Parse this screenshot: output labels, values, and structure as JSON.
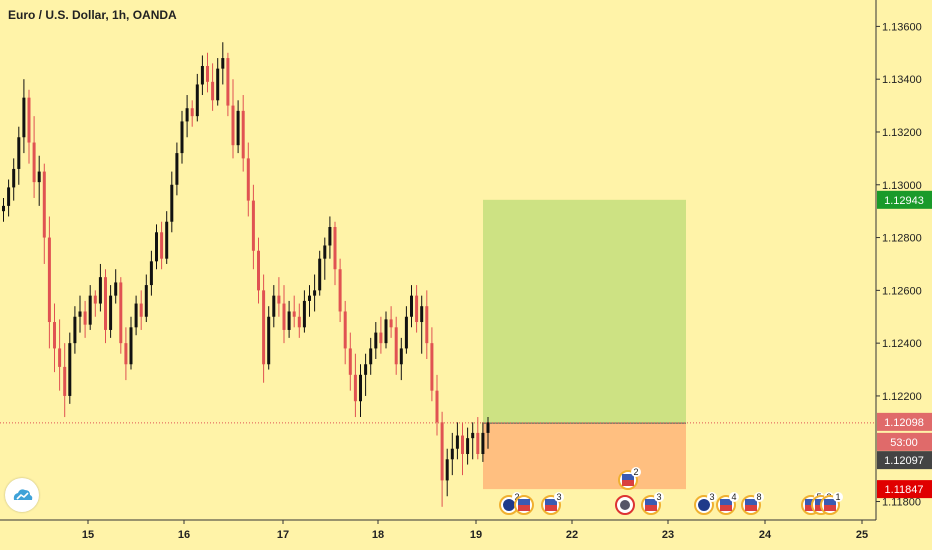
{
  "chart_data": {
    "type": "candlestick",
    "title": "Euro / U.S. Dollar, 1h, OANDA",
    "y_range": [
      1.1173,
      1.137
    ],
    "y_ticks": [
      "1.13600",
      "1.13400",
      "1.13200",
      "1.13000",
      "1.12800",
      "1.12600",
      "1.12400",
      "1.12200",
      "1.11800"
    ],
    "x_ticks": [
      "15",
      "16",
      "17",
      "18",
      "19",
      "22",
      "23",
      "24",
      "25"
    ],
    "grid": false,
    "colors": {
      "up": "#111111",
      "down": "#e05252",
      "profit_zone": "#cde283",
      "loss_zone": "#ffbf80",
      "price_line": "#e05252"
    },
    "position": {
      "type": "long",
      "entry": 1.12097,
      "target": 1.12943,
      "stop": 1.11847
    },
    "price_labels": {
      "target": {
        "text": "1.12943",
        "color": "#1a9a2a"
      },
      "last": {
        "text": "1.12098",
        "color": "#e06a6a"
      },
      "countdown": {
        "text": "53:00",
        "color": "#e06a6a"
      },
      "entry": {
        "text": "1.12097",
        "color": "#444444"
      },
      "stop": {
        "text": "1.11847",
        "color": "#e00000"
      }
    },
    "price_series": [
      [
        1.129,
        1.1295,
        1.1286,
        1.1292
      ],
      [
        1.1292,
        1.1302,
        1.1288,
        1.1299
      ],
      [
        1.1299,
        1.131,
        1.1294,
        1.1306
      ],
      [
        1.1306,
        1.1322,
        1.13,
        1.1318
      ],
      [
        1.1318,
        1.134,
        1.1312,
        1.1333
      ],
      [
        1.1333,
        1.1336,
        1.1308,
        1.1316
      ],
      [
        1.1316,
        1.1326,
        1.1295,
        1.1301
      ],
      [
        1.1301,
        1.1311,
        1.1292,
        1.1305
      ],
      [
        1.1305,
        1.1308,
        1.127,
        1.128
      ],
      [
        1.128,
        1.1288,
        1.1238,
        1.1248
      ],
      [
        1.1248,
        1.1255,
        1.1229,
        1.1238
      ],
      [
        1.1238,
        1.1249,
        1.1222,
        1.1231
      ],
      [
        1.1231,
        1.124,
        1.1212,
        1.122
      ],
      [
        1.122,
        1.1244,
        1.1217,
        1.124
      ],
      [
        1.124,
        1.1254,
        1.1236,
        1.125
      ],
      [
        1.125,
        1.1258,
        1.1244,
        1.1252
      ],
      [
        1.1252,
        1.1256,
        1.1242,
        1.1247
      ],
      [
        1.1247,
        1.1262,
        1.1245,
        1.1258
      ],
      [
        1.1258,
        1.126,
        1.125,
        1.1255
      ],
      [
        1.1255,
        1.127,
        1.1252,
        1.1265
      ],
      [
        1.1265,
        1.1268,
        1.124,
        1.1245
      ],
      [
        1.1245,
        1.1262,
        1.1242,
        1.1258
      ],
      [
        1.1258,
        1.1268,
        1.1255,
        1.1263
      ],
      [
        1.1263,
        1.1265,
        1.1236,
        1.124
      ],
      [
        1.124,
        1.1246,
        1.1226,
        1.1232
      ],
      [
        1.1232,
        1.125,
        1.123,
        1.1246
      ],
      [
        1.1246,
        1.1258,
        1.1243,
        1.1255
      ],
      [
        1.1255,
        1.126,
        1.1245,
        1.125
      ],
      [
        1.125,
        1.1266,
        1.1248,
        1.1262
      ],
      [
        1.1262,
        1.1275,
        1.1258,
        1.1271
      ],
      [
        1.1271,
        1.1285,
        1.1268,
        1.1282
      ],
      [
        1.1282,
        1.1286,
        1.1268,
        1.1272
      ],
      [
        1.1272,
        1.129,
        1.127,
        1.1286
      ],
      [
        1.1286,
        1.1305,
        1.1282,
        1.13
      ],
      [
        1.13,
        1.1316,
        1.1296,
        1.1312
      ],
      [
        1.1312,
        1.1328,
        1.1308,
        1.1324
      ],
      [
        1.1324,
        1.1334,
        1.1318,
        1.1329
      ],
      [
        1.1329,
        1.1332,
        1.1322,
        1.1326
      ],
      [
        1.1326,
        1.1342,
        1.1324,
        1.1338
      ],
      [
        1.1338,
        1.1349,
        1.1334,
        1.1345
      ],
      [
        1.1345,
        1.135,
        1.1335,
        1.1339
      ],
      [
        1.1339,
        1.1346,
        1.1328,
        1.1332
      ],
      [
        1.1332,
        1.1348,
        1.133,
        1.1344
      ],
      [
        1.1344,
        1.1354,
        1.1338,
        1.1348
      ],
      [
        1.1348,
        1.135,
        1.1326,
        1.133
      ],
      [
        1.133,
        1.134,
        1.131,
        1.1315
      ],
      [
        1.1315,
        1.1332,
        1.1312,
        1.1328
      ],
      [
        1.1328,
        1.1334,
        1.1305,
        1.131
      ],
      [
        1.131,
        1.1316,
        1.1288,
        1.1294
      ],
      [
        1.1294,
        1.13,
        1.1268,
        1.1275
      ],
      [
        1.1275,
        1.128,
        1.1255,
        1.126
      ],
      [
        1.126,
        1.1266,
        1.1225,
        1.1232
      ],
      [
        1.1232,
        1.1254,
        1.123,
        1.125
      ],
      [
        1.125,
        1.1262,
        1.1246,
        1.1258
      ],
      [
        1.1258,
        1.1265,
        1.125,
        1.1255
      ],
      [
        1.1255,
        1.1262,
        1.124,
        1.1245
      ],
      [
        1.1245,
        1.1256,
        1.1242,
        1.1252
      ],
      [
        1.1252,
        1.1258,
        1.1246,
        1.125
      ],
      [
        1.125,
        1.1255,
        1.1242,
        1.1246
      ],
      [
        1.1246,
        1.126,
        1.1244,
        1.1256
      ],
      [
        1.1256,
        1.1262,
        1.125,
        1.1258
      ],
      [
        1.1258,
        1.1266,
        1.1252,
        1.126
      ],
      [
        1.126,
        1.1275,
        1.1258,
        1.1272
      ],
      [
        1.1272,
        1.128,
        1.1264,
        1.1277
      ],
      [
        1.1277,
        1.1288,
        1.1272,
        1.1284
      ],
      [
        1.1284,
        1.1286,
        1.1262,
        1.1268
      ],
      [
        1.1268,
        1.1272,
        1.1248,
        1.1252
      ],
      [
        1.1252,
        1.1256,
        1.1232,
        1.1238
      ],
      [
        1.1238,
        1.1244,
        1.1222,
        1.1228
      ],
      [
        1.1228,
        1.1236,
        1.1212,
        1.1218
      ],
      [
        1.1218,
        1.1232,
        1.1212,
        1.1228
      ],
      [
        1.1228,
        1.1236,
        1.122,
        1.1232
      ],
      [
        1.1232,
        1.1242,
        1.1228,
        1.1238
      ],
      [
        1.1238,
        1.1248,
        1.1234,
        1.1244
      ],
      [
        1.1244,
        1.125,
        1.1236,
        1.124
      ],
      [
        1.124,
        1.1252,
        1.1238,
        1.1249
      ],
      [
        1.1249,
        1.1254,
        1.1242,
        1.1246
      ],
      [
        1.1246,
        1.125,
        1.1228,
        1.1232
      ],
      [
        1.1232,
        1.1242,
        1.1226,
        1.1238
      ],
      [
        1.1238,
        1.1254,
        1.1236,
        1.125
      ],
      [
        1.125,
        1.1262,
        1.1246,
        1.1258
      ],
      [
        1.1258,
        1.1262,
        1.1244,
        1.1248
      ],
      [
        1.1248,
        1.1258,
        1.1236,
        1.1254
      ],
      [
        1.1254,
        1.126,
        1.1234,
        1.124
      ],
      [
        1.124,
        1.1246,
        1.1218,
        1.1222
      ],
      [
        1.1222,
        1.1228,
        1.1205,
        1.121
      ],
      [
        1.121,
        1.1214,
        1.1178,
        1.1188
      ],
      [
        1.1188,
        1.12,
        1.1182,
        1.1196
      ],
      [
        1.1196,
        1.1206,
        1.119,
        1.12
      ],
      [
        1.12,
        1.121,
        1.1196,
        1.1205
      ],
      [
        1.1205,
        1.121,
        1.119,
        1.1198
      ],
      [
        1.1198,
        1.1208,
        1.1194,
        1.1204
      ],
      [
        1.1204,
        1.121,
        1.1196,
        1.1206
      ],
      [
        1.1206,
        1.1212,
        1.1196,
        1.1198
      ],
      [
        1.1198,
        1.121,
        1.1195,
        1.1206
      ],
      [
        1.1206,
        1.1212,
        1.12,
        1.121
      ]
    ]
  },
  "events": [
    {
      "label": "2",
      "flag": "eu-flag-icon"
    },
    {
      "label": "",
      "flag": "us-flag-icon"
    },
    {
      "label": "3",
      "flag": "us-flag-icon"
    },
    {
      "label": "",
      "flag": "calendar-icon"
    },
    {
      "label": "2",
      "flag": "us-flag-icon"
    },
    {
      "label": "3",
      "flag": "us-flag-icon"
    },
    {
      "label": "3",
      "flag": "eu-flag-icon"
    },
    {
      "label": "4",
      "flag": "us-flag-icon"
    },
    {
      "label": "8",
      "flag": "us-flag-icon"
    },
    {
      "label": "5",
      "flag": "us-flag-icon"
    },
    {
      "label": "3",
      "flag": "us-flag-icon"
    },
    {
      "label": "1",
      "flag": "us-flag-icon"
    }
  ],
  "branding": {
    "logo": "tradingview-cloud-icon"
  }
}
